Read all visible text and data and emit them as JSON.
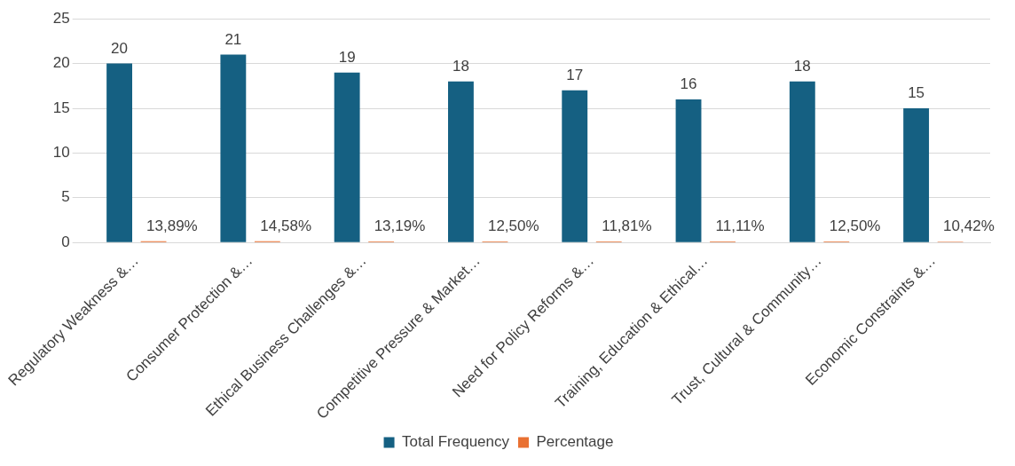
{
  "chart_data": {
    "type": "bar",
    "categories": [
      "Regulatory Weakness &…",
      "Consumer Protection &…",
      "Ethical Business Challenges &…",
      "Competitive Pressure & Market…",
      "Need for Policy Reforms &…",
      "Training, Education & Ethical…",
      "Trust, Cultural & Community…",
      "Economic Constraints &…"
    ],
    "series": [
      {
        "name": "Total Frequency",
        "color": "#156082",
        "values": [
          20,
          21,
          19,
          18,
          17,
          16,
          18,
          15
        ],
        "value_labels": [
          "20",
          "21",
          "19",
          "18",
          "17",
          "16",
          "18",
          "15"
        ]
      },
      {
        "name": "Percentage",
        "color": "#e97132",
        "values": [
          0.1389,
          0.1458,
          0.1319,
          0.125,
          0.1181,
          0.1111,
          0.125,
          0.1042
        ],
        "value_labels": [
          "13,89%",
          "14,58%",
          "13,19%",
          "12,50%",
          "11,81%",
          "11,11%",
          "12,50%",
          "10,42%"
        ]
      }
    ],
    "ylim": [
      0,
      25
    ],
    "yticks": [
      0,
      5,
      10,
      15,
      20,
      25
    ],
    "grid": "y",
    "legend": "bottom"
  }
}
